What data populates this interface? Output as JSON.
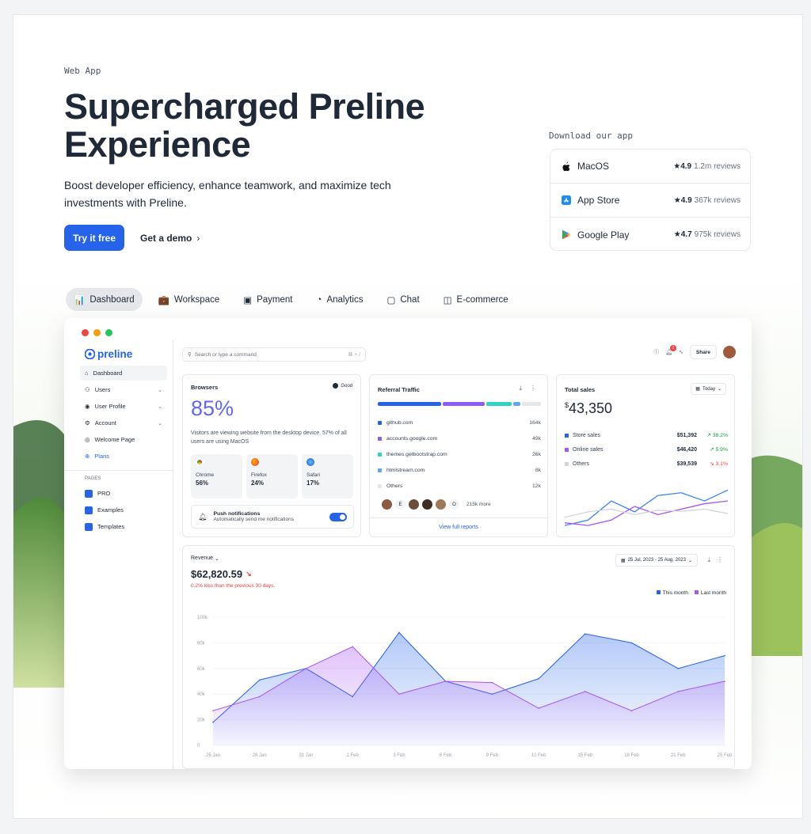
{
  "hero": {
    "eyebrow": "Web App",
    "title_line1": "Supercharged Preline",
    "title_line2": "Experience",
    "description": "Boost developer efficiency, enhance teamwork, and maximize tech investments with Preline.",
    "primary_button": "Try it free",
    "secondary_button": "Get a demo",
    "secondary_icon": "chevron-right-icon"
  },
  "download": {
    "label": "Download our app",
    "apps": [
      {
        "name": "MacOS",
        "icon": "apple-icon",
        "rating": "4.9",
        "reviews": "1.2m reviews"
      },
      {
        "name": "App Store",
        "icon": "app-store-icon",
        "rating": "4.9",
        "reviews": "367k reviews"
      },
      {
        "name": "Google Play",
        "icon": "google-play-icon",
        "rating": "4.7",
        "reviews": "975k reviews"
      }
    ]
  },
  "tabs": [
    {
      "label": "Dashboard",
      "icon": "chart-icon",
      "active": true
    },
    {
      "label": "Workspace",
      "icon": "briefcase-icon"
    },
    {
      "label": "Payment",
      "icon": "wallet-icon"
    },
    {
      "label": "Analytics",
      "icon": "pie-chart-icon"
    },
    {
      "label": "Chat",
      "icon": "chat-icon"
    },
    {
      "label": "E-commerce",
      "icon": "shopping-bag-icon"
    }
  ],
  "app": {
    "logo": "preline",
    "sidebar": {
      "items": [
        {
          "label": "Dashboard",
          "icon": "home-icon"
        },
        {
          "label": "Users",
          "icon": "users-icon"
        },
        {
          "label": "User Profile",
          "icon": "user-circle-icon"
        },
        {
          "label": "Account",
          "icon": "user-gear-icon"
        },
        {
          "label": "Welcome Page",
          "icon": "eye-icon"
        },
        {
          "label": "Plans",
          "icon": "plus-circle-icon"
        }
      ],
      "pages_label": "PAGES",
      "pages": [
        "PRO",
        "Examples",
        "Templates"
      ]
    },
    "search_placeholder": "Search or type a command",
    "search_shortcut": "⌘ + /",
    "notification_count": "2",
    "share_label": "Share",
    "browsers": {
      "title": "Browsers",
      "badge": "Good",
      "percent": "85%",
      "description": "Visitors are viewing website from the desktop device. 57% of all users are using MacOS",
      "items": [
        {
          "name": "Chrome",
          "value": "56%"
        },
        {
          "name": "Firefox",
          "value": "24%"
        },
        {
          "name": "Safari",
          "value": "17%"
        }
      ],
      "push_title": "Push notifications",
      "push_desc": "Automatically send me notifications"
    },
    "referral": {
      "title": "Referral Traffic",
      "rows": [
        {
          "name": "github.com",
          "value": "164k",
          "color": "#2563eb"
        },
        {
          "name": "accounts.google.com",
          "value": "49k",
          "color": "#8b5cf6"
        },
        {
          "name": "themes.getbootstrap.com",
          "value": "26k",
          "color": "#2dd4bf"
        },
        {
          "name": "htmlstream.com",
          "value": "8k",
          "color": "#60a5fa"
        },
        {
          "name": "Others",
          "value": "12k",
          "color": "#e5e7eb"
        }
      ],
      "avatars_more": "215k more",
      "avatar_letters": [
        "E",
        "O"
      ],
      "footer_link": "View full reports"
    },
    "sales": {
      "title": "Total sales",
      "period": "Today",
      "currency": "$",
      "value": "43,350",
      "rows": [
        {
          "name": "Store sales",
          "amount": "$51,392",
          "change": "38.2%",
          "dir": "up",
          "color": "#2563eb"
        },
        {
          "name": "Online sales",
          "amount": "$46,420",
          "change": "5.9%",
          "dir": "up",
          "color": "#a855f7"
        },
        {
          "name": "Others",
          "amount": "$39,539",
          "change": "3.1%",
          "dir": "down",
          "color": "#d1d5db"
        }
      ]
    },
    "revenue": {
      "label": "Revenue",
      "value": "$62,820.59",
      "note": "0.2% less than the previous 30 days.",
      "date_range": "25 Jul, 2023 - 25 Aug, 2023",
      "legend_this": "This month",
      "legend_last": "Last month"
    }
  },
  "chart_data": {
    "type": "area",
    "categories": [
      "25 Jan",
      "28 Jan",
      "31 Jan",
      "1 Feb",
      "3 Feb",
      "6 Feb",
      "9 Feb",
      "12 Feb",
      "15 Feb",
      "18 Feb",
      "21 Feb",
      "25 Feb"
    ],
    "ylim": [
      0,
      100000
    ],
    "yticks": [
      "0",
      "20k",
      "40k",
      "60k",
      "80k",
      "100k"
    ],
    "series": [
      {
        "name": "This month",
        "color": "#2563eb",
        "values": [
          18000,
          51000,
          60000,
          38000,
          88000,
          50000,
          40000,
          52000,
          87000,
          80000,
          60000,
          70000
        ]
      },
      {
        "name": "Last month",
        "color": "#a855f7",
        "values": [
          27000,
          38000,
          60000,
          77000,
          40000,
          50000,
          49000,
          29000,
          42000,
          27000,
          42000,
          50000
        ]
      }
    ],
    "legend": "top-right",
    "grid": true
  },
  "sales_chart": {
    "series": [
      {
        "name": "Store sales",
        "color": "#3b82f6",
        "values": [
          10,
          20,
          55,
          35,
          65,
          70,
          55,
          75
        ]
      },
      {
        "name": "Online sales",
        "color": "#a855f7",
        "values": [
          15,
          10,
          20,
          45,
          30,
          40,
          50,
          55
        ]
      },
      {
        "name": "Others",
        "color": "#d1d5db",
        "values": [
          25,
          35,
          40,
          30,
          38,
          36,
          40,
          32
        ]
      }
    ]
  }
}
